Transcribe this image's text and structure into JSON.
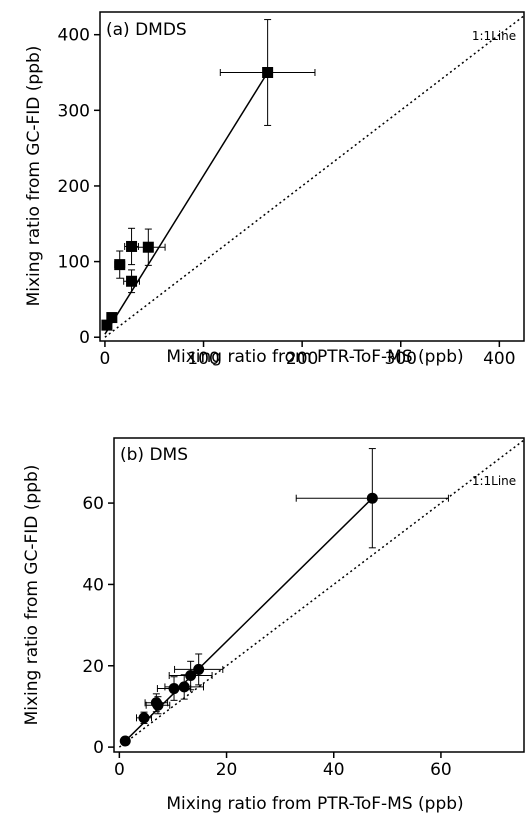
{
  "chart_data": [
    {
      "type": "scatter",
      "panel_label": "(a) DMDS",
      "xlabel": "Mixing ratio from PTR-ToF-MS (ppb)",
      "ylabel": "Mixing ratio from GC-FID (ppb)",
      "xlim": [
        -5,
        425
      ],
      "ylim": [
        -5,
        430
      ],
      "xticks": [
        0,
        100,
        200,
        300,
        400
      ],
      "yticks": [
        0,
        100,
        200,
        300,
        400
      ],
      "xtick_labels": [
        "0",
        "100",
        "200",
        "300",
        "400"
      ],
      "ytick_labels": [
        "0",
        "100",
        "200",
        "300",
        "400"
      ],
      "marker": "square",
      "one_to_one_label": "1:1Line",
      "points": [
        {
          "x": 165,
          "y": 350,
          "xerr": 48,
          "yerr": 70
        },
        {
          "x": 44,
          "y": 119,
          "xerr": 17,
          "yerr": 24
        },
        {
          "x": 27,
          "y": 120,
          "xerr": 7,
          "yerr": 24
        },
        {
          "x": 15,
          "y": 96,
          "xerr": 5,
          "yerr": 18
        },
        {
          "x": 27,
          "y": 74,
          "xerr": 8,
          "yerr": 15
        },
        {
          "x": 7,
          "y": 26,
          "xerr": 3,
          "yerr": 5
        },
        {
          "x": 2,
          "y": 16,
          "xerr": 2,
          "yerr": 4
        }
      ],
      "fit_line": {
        "x": [
          0,
          165
        ],
        "y": [
          4,
          350
        ]
      }
    },
    {
      "type": "scatter",
      "panel_label": "(b) DMS",
      "xlabel": "Mixing ratio from PTR-ToF-MS (ppb)",
      "ylabel": "Mixing ratio from GC-FID (ppb)",
      "xlim": [
        -1,
        75.5
      ],
      "ylim": [
        -1.2,
        76
      ],
      "xticks": [
        0,
        20,
        40,
        60
      ],
      "yticks": [
        0,
        20,
        40,
        60
      ],
      "xtick_labels": [
        "0",
        "20",
        "40",
        "60"
      ],
      "ytick_labels": [
        "0",
        "20",
        "40",
        "60"
      ],
      "marker": "circle",
      "one_to_one_label": "1:1Line",
      "points": [
        {
          "x": 47.2,
          "y": 61.2,
          "xerr": 14.2,
          "yerr": 12.2
        },
        {
          "x": 14.8,
          "y": 19.1,
          "xerr": 4.5,
          "yerr": 3.8
        },
        {
          "x": 13.3,
          "y": 17.6,
          "xerr": 4.0,
          "yerr": 3.5
        },
        {
          "x": 12.1,
          "y": 14.8,
          "xerr": 3.6,
          "yerr": 3.0
        },
        {
          "x": 10.2,
          "y": 14.4,
          "xerr": 3.1,
          "yerr": 2.9
        },
        {
          "x": 6.9,
          "y": 10.9,
          "xerr": 2.1,
          "yerr": 2.2
        },
        {
          "x": 7.2,
          "y": 10.3,
          "xerr": 2.2,
          "yerr": 2.1
        },
        {
          "x": 4.6,
          "y": 7.2,
          "xerr": 1.4,
          "yerr": 1.4
        },
        {
          "x": 1.1,
          "y": 1.5,
          "xerr": 0.3,
          "yerr": 0.3
        }
      ],
      "fit_line": {
        "x": [
          1.1,
          47.2
        ],
        "y": [
          1.5,
          61.2
        ]
      }
    }
  ]
}
